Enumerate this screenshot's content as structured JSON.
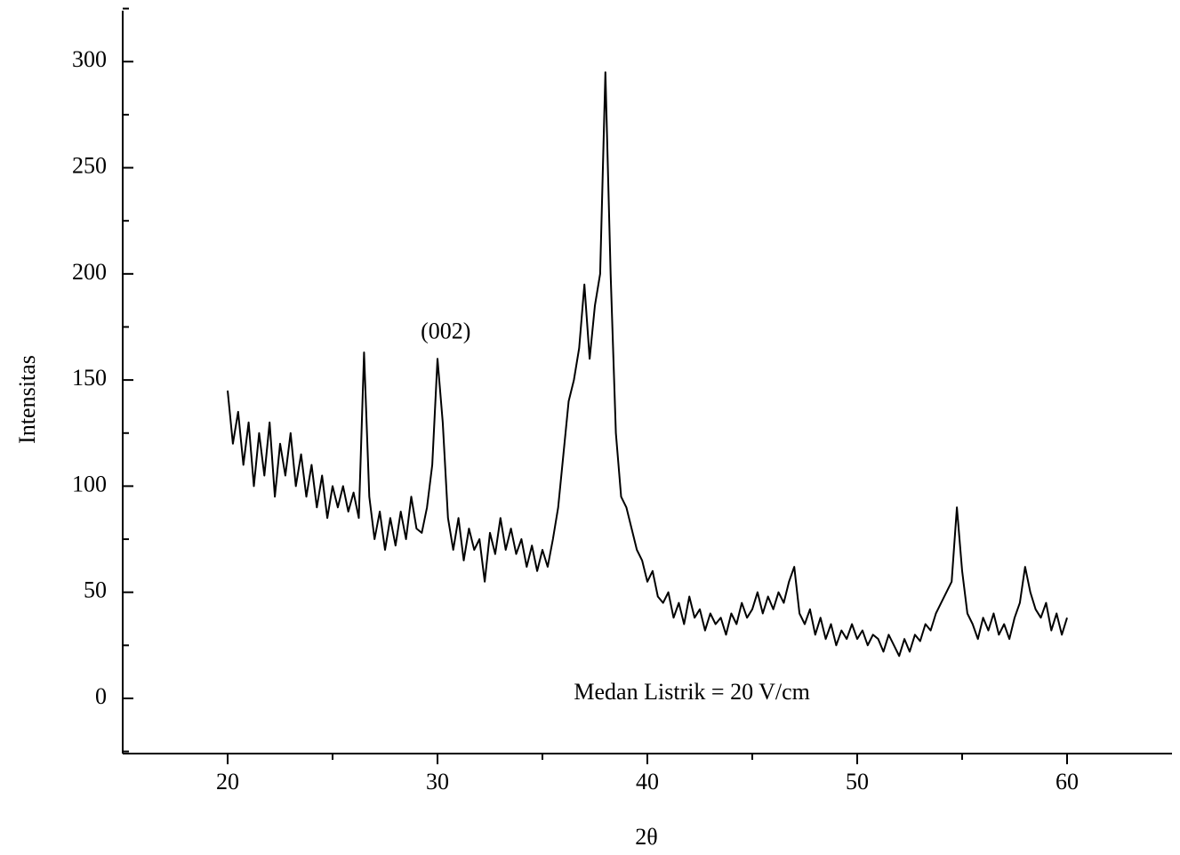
{
  "chart_data": {
    "type": "line",
    "xlabel": "2θ",
    "ylabel": "Intensitas",
    "annotations": [
      {
        "text": "(002)",
        "x": 29.2,
        "y": 172
      },
      {
        "text": "Medan Listrik = 20 V/cm",
        "x": 36.5,
        "y": 2
      }
    ],
    "xlim": [
      15,
      65
    ],
    "ylim": [
      -26,
      324
    ],
    "xticks": [
      20,
      30,
      40,
      50,
      60
    ],
    "yticks": [
      0,
      50,
      100,
      150,
      200,
      250,
      300
    ],
    "xminor_ticks": [
      25,
      35,
      45,
      55
    ],
    "yminor_ticks": [
      -25,
      25,
      75,
      125,
      175,
      225,
      275,
      325
    ],
    "color": "#000000",
    "x": [
      20,
      20.25,
      20.5,
      20.75,
      21,
      21.25,
      21.5,
      21.75,
      22,
      22.25,
      22.5,
      22.75,
      23,
      23.25,
      23.5,
      23.75,
      24,
      24.25,
      24.5,
      24.75,
      25,
      25.25,
      25.5,
      25.75,
      26,
      26.25,
      26.5,
      26.75,
      27,
      27.25,
      27.5,
      27.75,
      28,
      28.25,
      28.5,
      28.75,
      29,
      29.25,
      29.5,
      29.75,
      30,
      30.25,
      30.5,
      30.75,
      31,
      31.25,
      31.5,
      31.75,
      32,
      32.25,
      32.5,
      32.75,
      33,
      33.25,
      33.5,
      33.75,
      34,
      34.25,
      34.5,
      34.75,
      35,
      35.25,
      35.5,
      35.75,
      36,
      36.25,
      36.5,
      36.75,
      37,
      37.25,
      37.5,
      37.75,
      38,
      38.25,
      38.5,
      38.75,
      39,
      39.25,
      39.5,
      39.75,
      40,
      40.25,
      40.5,
      40.75,
      41,
      41.25,
      41.5,
      41.75,
      42,
      42.25,
      42.5,
      42.75,
      43,
      43.25,
      43.5,
      43.75,
      44,
      44.25,
      44.5,
      44.75,
      45,
      45.25,
      45.5,
      45.75,
      46,
      46.25,
      46.5,
      46.75,
      47,
      47.25,
      47.5,
      47.75,
      48,
      48.25,
      48.5,
      48.75,
      49,
      49.25,
      49.5,
      49.75,
      50,
      50.25,
      50.5,
      50.75,
      51,
      51.25,
      51.5,
      51.75,
      52,
      52.25,
      52.5,
      52.75,
      53,
      53.25,
      53.5,
      53.75,
      54,
      54.25,
      54.5,
      54.75,
      55,
      55.25,
      55.5,
      55.75,
      56,
      56.25,
      56.5,
      56.75,
      57,
      57.25,
      57.5,
      57.75,
      58,
      58.25,
      58.5,
      58.75,
      59,
      59.25,
      59.5,
      59.75,
      60
    ],
    "values": [
      145,
      120,
      135,
      110,
      130,
      100,
      125,
      105,
      130,
      95,
      120,
      105,
      125,
      100,
      115,
      95,
      110,
      90,
      105,
      85,
      100,
      90,
      100,
      88,
      97,
      85,
      163,
      95,
      75,
      88,
      70,
      85,
      72,
      88,
      75,
      95,
      80,
      78,
      90,
      110,
      160,
      130,
      85,
      70,
      85,
      65,
      80,
      70,
      75,
      55,
      78,
      68,
      85,
      70,
      80,
      68,
      75,
      62,
      72,
      60,
      70,
      62,
      75,
      90,
      115,
      140,
      150,
      165,
      195,
      160,
      185,
      200,
      295,
      200,
      125,
      95,
      90,
      80,
      70,
      65,
      55,
      60,
      48,
      45,
      50,
      38,
      45,
      35,
      48,
      38,
      42,
      32,
      40,
      35,
      38,
      30,
      40,
      35,
      45,
      38,
      42,
      50,
      40,
      48,
      42,
      50,
      45,
      55,
      62,
      40,
      35,
      42,
      30,
      38,
      28,
      35,
      25,
      32,
      28,
      35,
      28,
      32,
      25,
      30,
      28,
      22,
      30,
      25,
      20,
      28,
      22,
      30,
      27,
      35,
      32,
      40,
      45,
      50,
      55,
      90,
      60,
      40,
      35,
      28,
      38,
      32,
      40,
      30,
      35,
      28,
      38,
      45,
      62,
      50,
      42,
      38,
      45,
      32,
      40,
      30,
      38
    ]
  }
}
